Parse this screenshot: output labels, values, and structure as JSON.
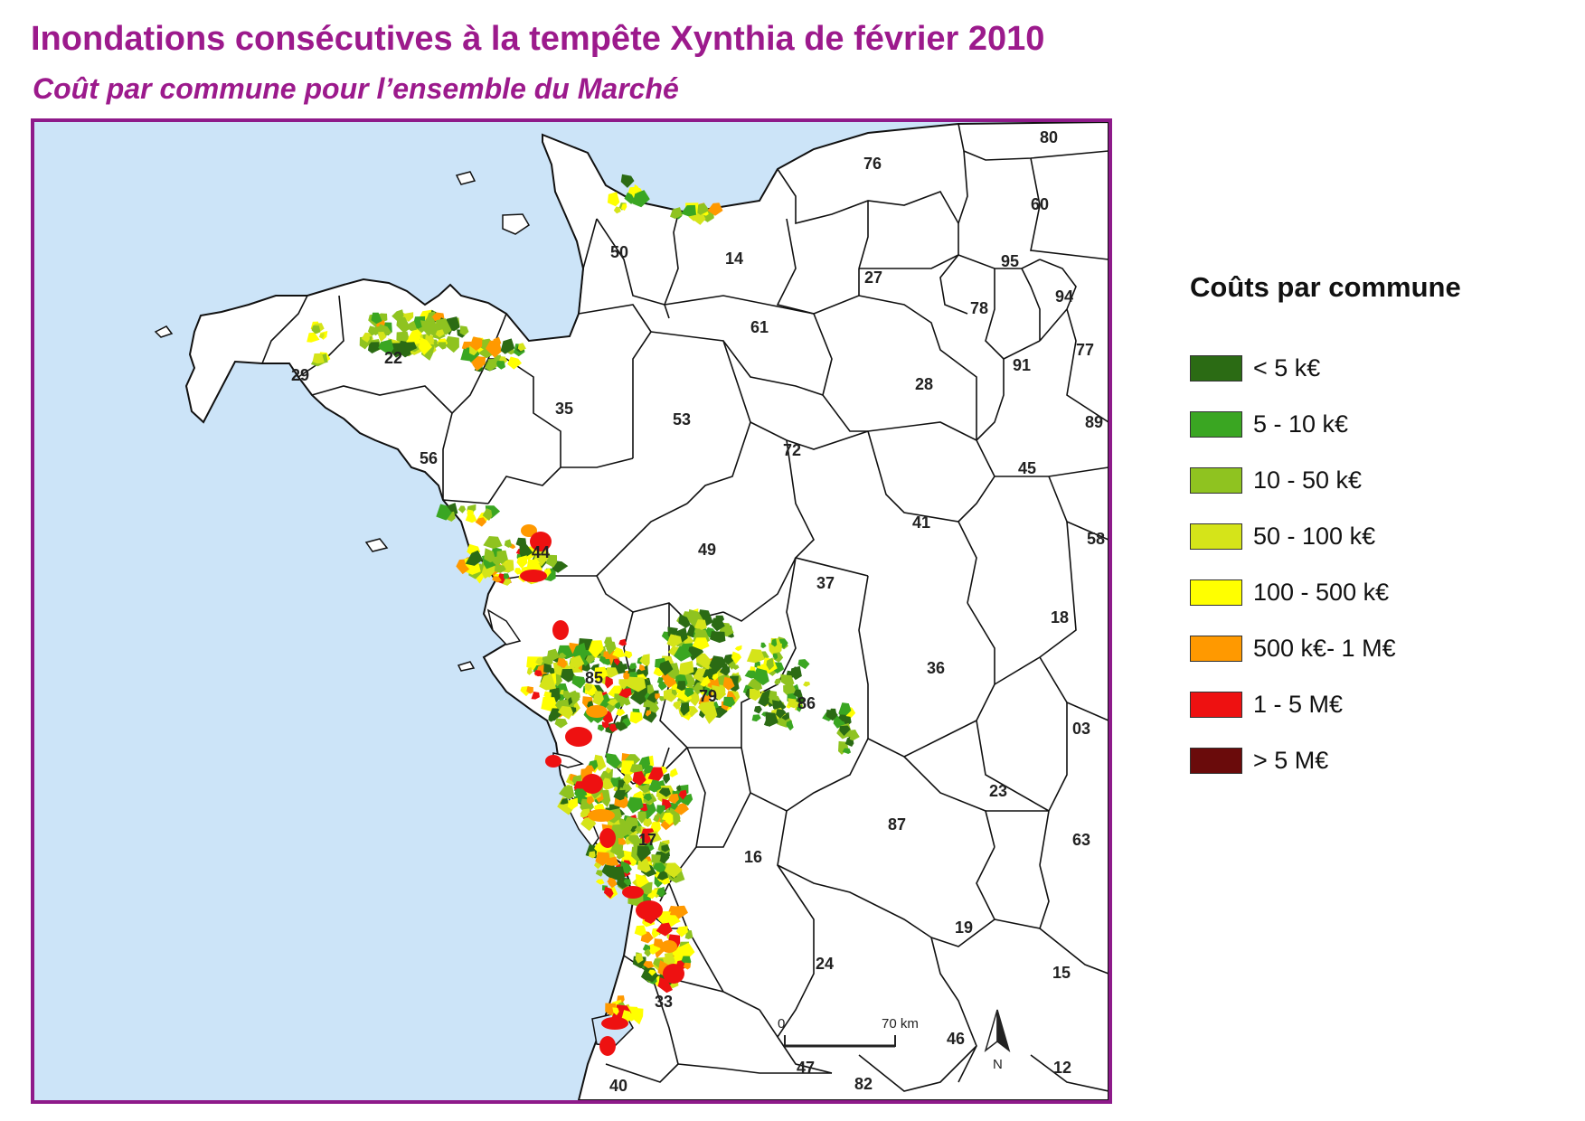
{
  "title": "Inondations consécutives à la tempête Xynthia de février 2010",
  "subtitle": "Coût par commune pour l’ensemble du Marché",
  "colors": {
    "title": "#9c1a8c",
    "frame": "#8e1a8a",
    "sea": "#cce4f8",
    "land": "#ffffff"
  },
  "map": {
    "departments": [
      "80",
      "76",
      "60",
      "50",
      "14",
      "27",
      "95",
      "94",
      "78",
      "77",
      "61",
      "22",
      "29",
      "91",
      "28",
      "35",
      "53",
      "89",
      "72",
      "56",
      "45",
      "41",
      "44",
      "49",
      "58",
      "37",
      "18",
      "85",
      "79",
      "36",
      "86",
      "03",
      "23",
      "17",
      "87",
      "63",
      "16",
      "19",
      "15",
      "24",
      "33",
      "46",
      "47",
      "12",
      "40",
      "82"
    ],
    "scale_bar": {
      "start_label": "0",
      "end_label": "70 km"
    },
    "north_arrow_label": "N"
  },
  "legend": {
    "title": "Coûts par commune",
    "items": [
      {
        "label": "< 5 k€",
        "color": "#2b6b14"
      },
      {
        "label": "5 - 10 k€",
        "color": "#3aa622"
      },
      {
        "label": "10 - 50 k€",
        "color": "#8fc320"
      },
      {
        "label": "50 - 100 k€",
        "color": "#d5e419"
      },
      {
        "label": "100 - 500 k€",
        "color": "#ffff00"
      },
      {
        "label": "500 k€- 1 M€",
        "color": "#ff9900"
      },
      {
        "label": "1 - 5 M€",
        "color": "#ee1111"
      },
      {
        "label": "> 5 M€",
        "color": "#6a0b0b"
      }
    ]
  }
}
